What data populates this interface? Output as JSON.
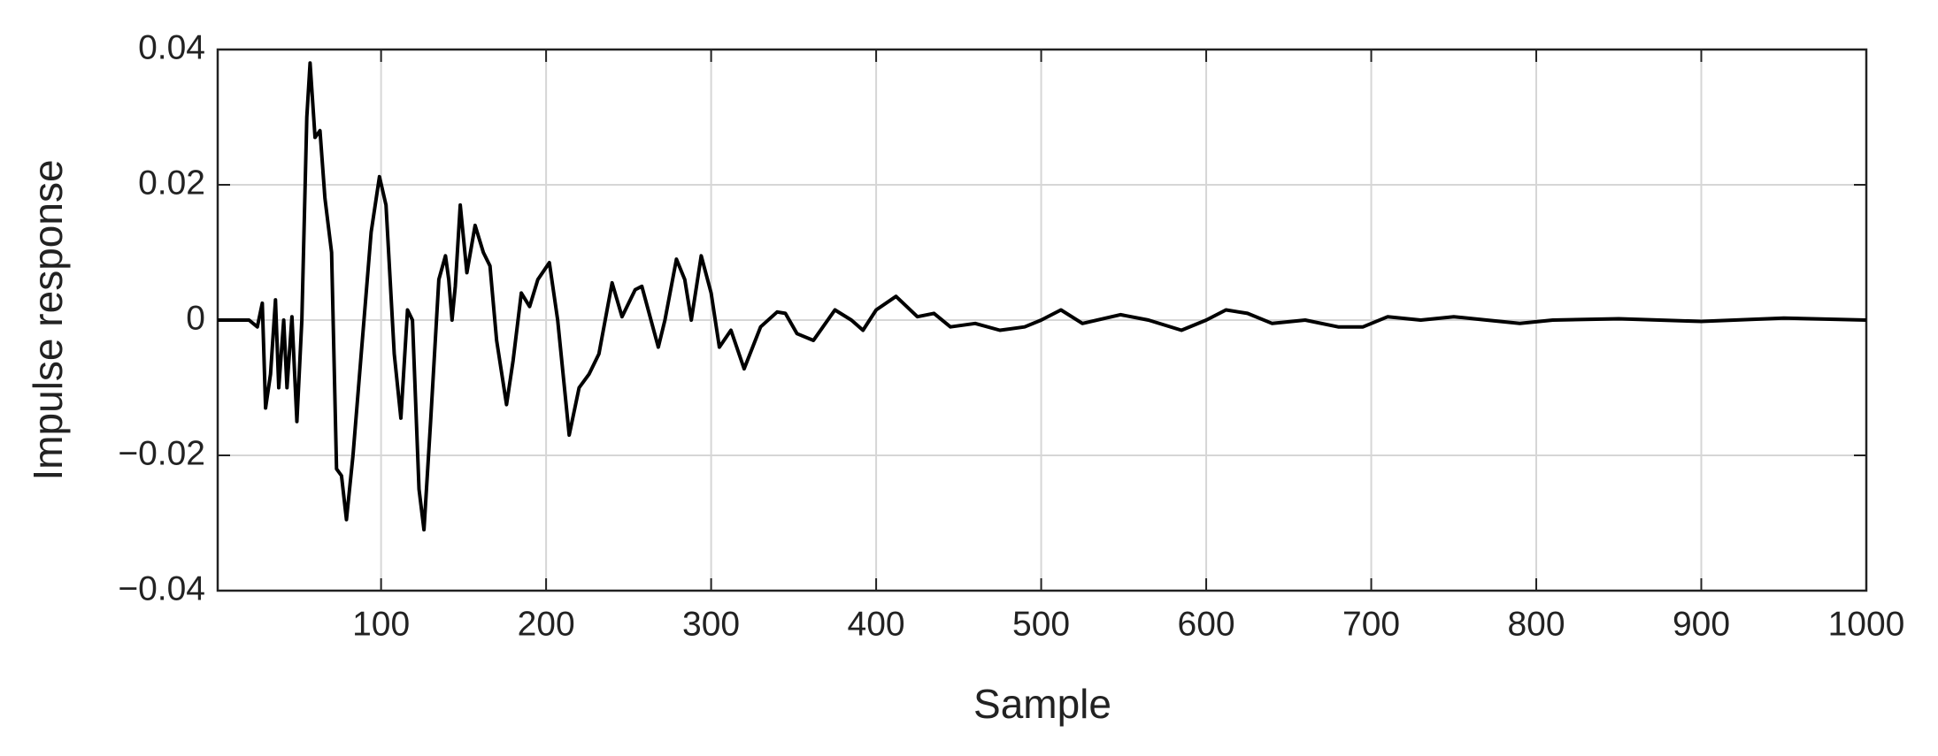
{
  "chart_data": {
    "type": "line",
    "xlabel": "Sample",
    "ylabel": "Impulse response",
    "x": [
      1,
      20,
      25,
      28,
      30,
      33,
      36,
      38,
      41,
      43,
      46,
      49,
      52,
      55,
      57,
      60,
      63,
      66,
      70,
      73,
      76,
      79,
      83,
      88,
      94,
      99,
      103,
      108,
      112,
      116,
      119,
      123,
      126,
      130,
      135,
      139,
      141,
      143,
      145,
      148,
      152,
      157,
      162,
      166,
      170,
      176,
      180,
      185,
      190,
      195,
      202,
      207,
      214,
      220,
      226,
      232,
      240,
      246,
      254,
      258,
      268,
      272,
      279,
      284,
      288,
      294,
      300,
      305,
      312,
      320,
      330,
      340,
      345,
      352,
      362,
      375,
      385,
      392,
      400,
      412,
      425,
      435,
      445,
      460,
      475,
      490,
      500,
      512,
      525,
      548,
      565,
      585,
      600,
      612,
      625,
      640,
      660,
      680,
      695,
      710,
      730,
      750,
      770,
      790,
      810,
      850,
      900,
      950,
      1000
    ],
    "series": [
      {
        "color": "#000000",
        "values": [
          0,
          0,
          -0.001,
          0.0025,
          -0.013,
          -0.008,
          0.003,
          -0.01,
          0,
          -0.01,
          0.0005,
          -0.015,
          0,
          0.03,
          0.038,
          0.027,
          0.028,
          0.018,
          0.01,
          -0.022,
          -0.023,
          -0.0295,
          -0.02,
          -0.005,
          0.013,
          0.0212,
          0.017,
          -0.005,
          -0.0145,
          0.0015,
          0,
          -0.025,
          -0.031,
          -0.015,
          0.006,
          0.0095,
          0.006,
          0,
          0.005,
          0.017,
          0.007,
          0.014,
          0.01,
          0.008,
          -0.003,
          -0.0125,
          -0.006,
          0.004,
          0.002,
          0.006,
          0.0085,
          0,
          -0.017,
          -0.01,
          -0.008,
          -0.005,
          0.0055,
          0.0005,
          0.0045,
          0.005,
          -0.004,
          0,
          0.009,
          0.006,
          0,
          0.0095,
          0.004,
          -0.004,
          -0.0015,
          -0.0072,
          -0.001,
          0.0012,
          0.001,
          -0.002,
          -0.003,
          0.0015,
          0,
          -0.0015,
          0.0015,
          0.0035,
          0.0005,
          0.001,
          -0.001,
          -0.0005,
          -0.0015,
          -0.001,
          0,
          0.0015,
          -0.0005,
          0.0008,
          0,
          -0.0015,
          0,
          0.0015,
          0.001,
          -0.0005,
          0,
          -0.001,
          -0.001,
          0.0005,
          0,
          0.0005,
          0,
          -0.0005,
          0,
          0.0002,
          -0.0002,
          0.0003,
          0
        ]
      }
    ],
    "xlim": [
      1,
      1000
    ],
    "xticks": [
      100,
      200,
      300,
      400,
      500,
      600,
      700,
      800,
      900,
      1000
    ],
    "ylim": [
      -0.04,
      0.04
    ],
    "yticks": [
      {
        "value": -0.04,
        "label": "−0.04"
      },
      {
        "value": -0.02,
        "label": "−0.02"
      },
      0,
      0.02,
      0.04
    ],
    "grid": true
  }
}
